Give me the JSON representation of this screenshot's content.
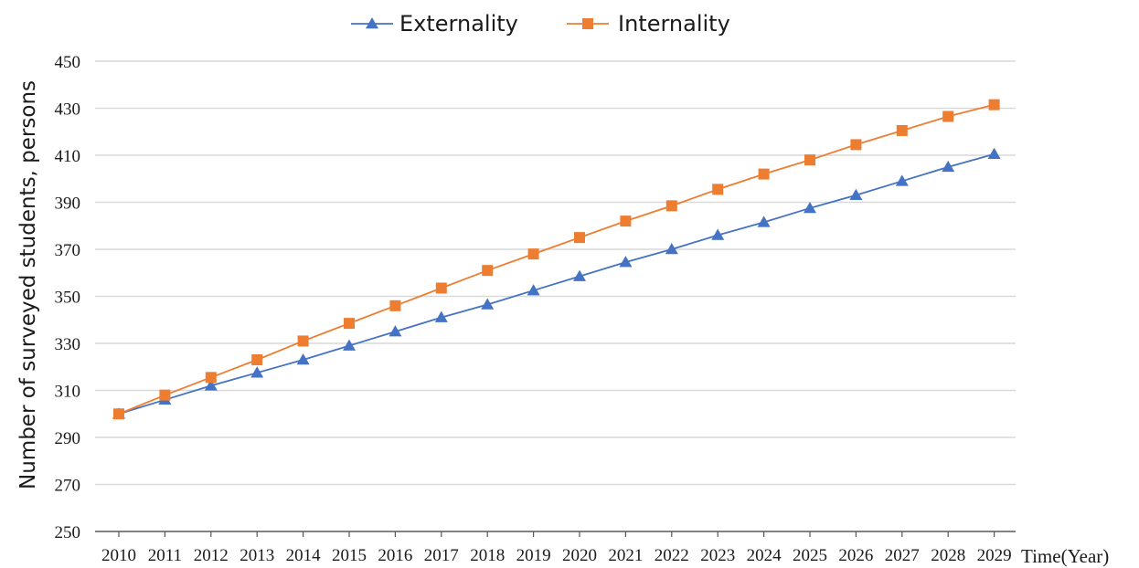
{
  "chart_data": {
    "type": "line",
    "title": "",
    "xlabel": "Time(Year)",
    "ylabel": "Number of surveyed students, persons",
    "ylim": [
      250,
      450
    ],
    "yticks": [
      250,
      270,
      290,
      310,
      330,
      350,
      370,
      390,
      410,
      430,
      450
    ],
    "grid": "horizontal",
    "legend_position": "top-center",
    "categories": [
      "2010",
      "2011",
      "2012",
      "2013",
      "2014",
      "2015",
      "2016",
      "2017",
      "2018",
      "2019",
      "2020",
      "2021",
      "2022",
      "2023",
      "2024",
      "2025",
      "2026",
      "2027",
      "2028",
      "2029"
    ],
    "series": [
      {
        "name": "Externality",
        "color": "#4472c4",
        "marker": "triangle",
        "values": [
          300,
          306,
          312,
          317.5,
          323,
          329,
          335,
          341,
          346.5,
          352.5,
          358.5,
          364.5,
          370,
          376,
          381.5,
          387.5,
          393,
          399,
          405,
          410.5
        ]
      },
      {
        "name": "Internality",
        "color": "#ed7d31",
        "marker": "square",
        "values": [
          300,
          308,
          315.5,
          323,
          331,
          338.5,
          346,
          353.5,
          361,
          368,
          375,
          382,
          388.5,
          395.5,
          402,
          408,
          414.5,
          420.5,
          426.5,
          431.5
        ]
      }
    ]
  }
}
